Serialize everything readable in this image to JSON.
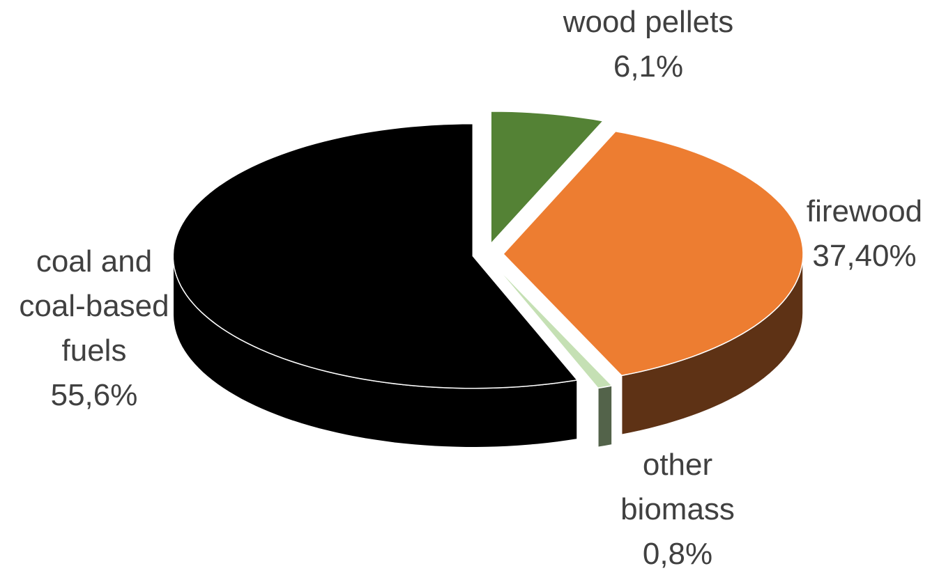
{
  "chart_data": {
    "type": "pie",
    "categories": [
      "wood pellets",
      "firewood",
      "other biomass",
      "coal and coal-based fuels"
    ],
    "values": [
      6.1,
      37.4,
      0.8,
      55.6
    ],
    "value_labels": [
      "6,1%",
      "37,40%",
      "0,8%",
      "55,6%"
    ],
    "colors": [
      "#548235",
      "#ed7d31",
      "#c5e0b4",
      "#000000"
    ],
    "side_colors": [
      "#375623",
      "#5e3215",
      "#53634a",
      "#000000"
    ]
  }
}
